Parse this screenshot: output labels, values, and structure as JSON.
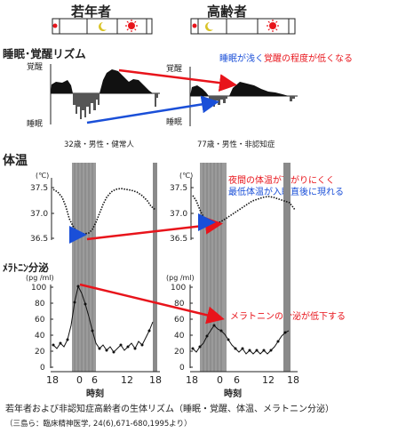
{
  "headers": {
    "young": "若年者",
    "elderly": "高齢者"
  },
  "sections": {
    "sleep": "睡眠･覚醒リズム",
    "temp": "体温",
    "melatonin": "ﾒﾗﾄﾆﾝ分泌"
  },
  "sleep_axis": {
    "wake": "覚醒",
    "sleep": "睡眠"
  },
  "subjects": {
    "young": "32歳・男性・健常人",
    "elderly": "77歳・男性・非認知症"
  },
  "temp_axis": {
    "unit": "(℃)",
    "ticks": [
      "37.5",
      "37.0",
      "36.5"
    ]
  },
  "mel_axis": {
    "unit": "(pg /ml)",
    "ticks": [
      "100",
      "80",
      "60",
      "40",
      "20",
      "0"
    ]
  },
  "x_axis": {
    "ticks": [
      "18",
      "0",
      "6",
      "12",
      "18"
    ],
    "label": "時刻"
  },
  "annotations": {
    "sleep_blue": "睡眠が浅く",
    "sleep_red": "覚醒の程度が低くなる",
    "temp_red": "夜間の体温が下がりにくく",
    "temp_blue": "最低体温が入眠直後に現れる",
    "melatonin_red": "メラトニンの分泌が低下する"
  },
  "caption": "若年者および非認知症高齢者の生体リズム（睡眠・覚醒、体温、メラトニン分泌）",
  "source": "（三島ら：臨床精神医学, 24(6),671-680,1995より）",
  "colors": {
    "red": "#e8141b",
    "blue": "#1a4fd8",
    "shade": "#8a8a8a"
  }
}
